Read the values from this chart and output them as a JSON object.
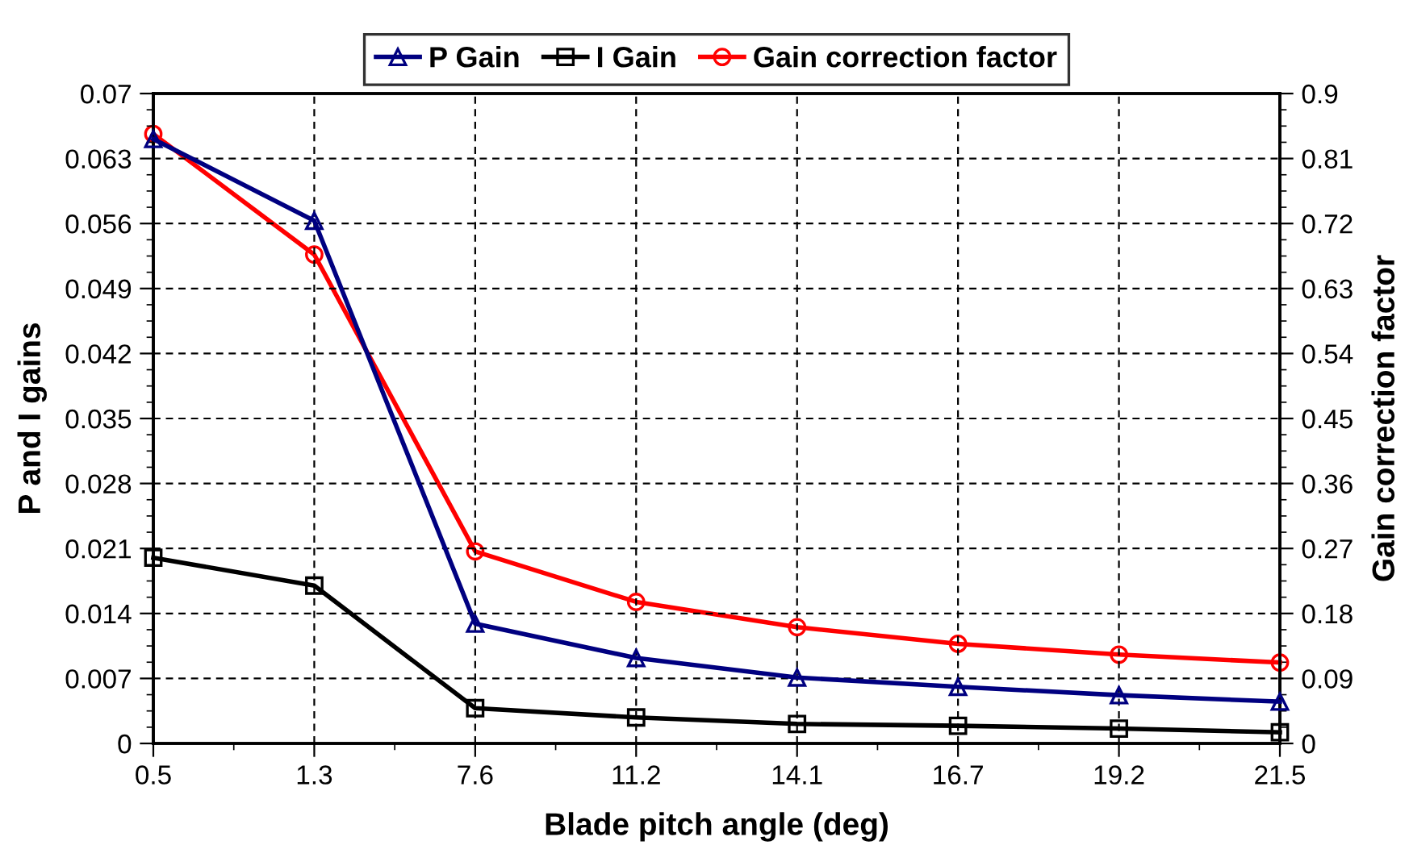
{
  "chart_data": {
    "type": "line",
    "xlabel": "Blade pitch angle (deg)",
    "ylabel": "P and I gains",
    "y2label": "Gain correction factor",
    "categories": [
      "0.5",
      "1.3",
      "7.6",
      "11.2",
      "14.1",
      "16.7",
      "19.2",
      "21.5"
    ],
    "series": [
      {
        "name": "P Gain",
        "color": "#000080",
        "marker": "triangle",
        "values": [
          0.0651,
          0.0563,
          0.0129,
          0.0092,
          0.0071,
          0.0061,
          0.0052,
          0.0045
        ]
      },
      {
        "name": "I Gain",
        "color": "#000000",
        "marker": "square",
        "values": [
          0.02,
          0.017,
          0.0038,
          0.0028,
          0.0021,
          0.0019,
          0.0016,
          0.0012
        ]
      },
      {
        "name": "Gain correction factor",
        "color": "#ff0000",
        "marker": "circle",
        "axis": "y2",
        "values": [
          0.844,
          0.677,
          0.266,
          0.196,
          0.161,
          0.138,
          0.123,
          0.112
        ]
      }
    ],
    "ylim": [
      0,
      0.07
    ],
    "yticks": [
      0,
      0.007,
      0.014,
      0.021,
      0.028,
      0.035,
      0.042,
      0.049,
      0.056,
      0.063,
      0.07
    ],
    "y2lim": [
      0,
      0.9
    ],
    "y2ticks": [
      0,
      0.09,
      0.18,
      0.27,
      0.36,
      0.45,
      0.54,
      0.63,
      0.72,
      0.81,
      0.9
    ],
    "grid": true,
    "legend": "top",
    "line_style": "solid"
  }
}
